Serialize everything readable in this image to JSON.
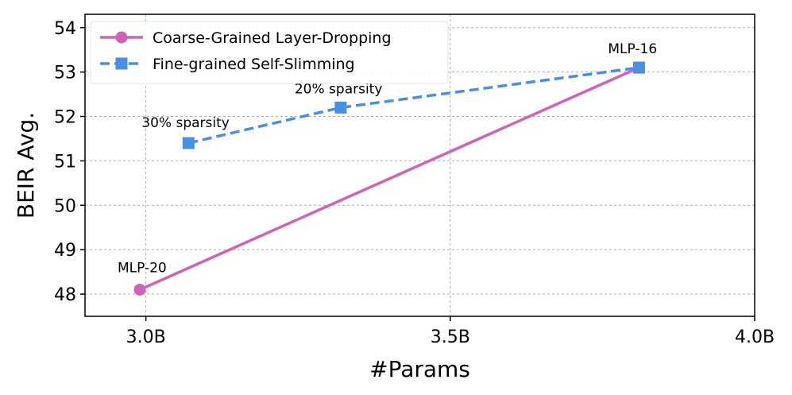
{
  "chart_data": {
    "type": "line",
    "xlabel": "#Params",
    "ylabel": "BEIR Avg.",
    "xlim": [
      2.9,
      4.0
    ],
    "ylim": [
      47.5,
      54.3
    ],
    "xticks": [
      3.0,
      3.5,
      4.0
    ],
    "xtick_labels": [
      "3.0B",
      "3.5B",
      "4.0B"
    ],
    "yticks": [
      48,
      49,
      50,
      51,
      52,
      53,
      54
    ],
    "ytick_labels": [
      "48",
      "49",
      "50",
      "51",
      "52",
      "53",
      "54"
    ],
    "grid": true,
    "legend_position": "top-left",
    "series": [
      {
        "name": "Coarse-Grained Layer-Dropping",
        "color": "#d062b8",
        "marker": "circle",
        "line_style": "solid",
        "x": [
          2.99,
          3.81
        ],
        "y": [
          48.1,
          53.1
        ]
      },
      {
        "name": "Fine-grained Self-Slimming",
        "color": "#4a8fe0",
        "marker": "square",
        "line_style": "dashed",
        "x": [
          3.07,
          3.32,
          3.81
        ],
        "y": [
          51.4,
          52.2,
          53.1
        ]
      }
    ],
    "annotations": [
      {
        "text": "MLP-20",
        "x": 2.99,
        "y": 48.1
      },
      {
        "text": "30% sparsity",
        "x": 3.07,
        "y": 51.4
      },
      {
        "text": "20% sparsity",
        "x": 3.32,
        "y": 52.2
      },
      {
        "text": "MLP-16",
        "x": 3.81,
        "y": 53.1
      }
    ]
  }
}
